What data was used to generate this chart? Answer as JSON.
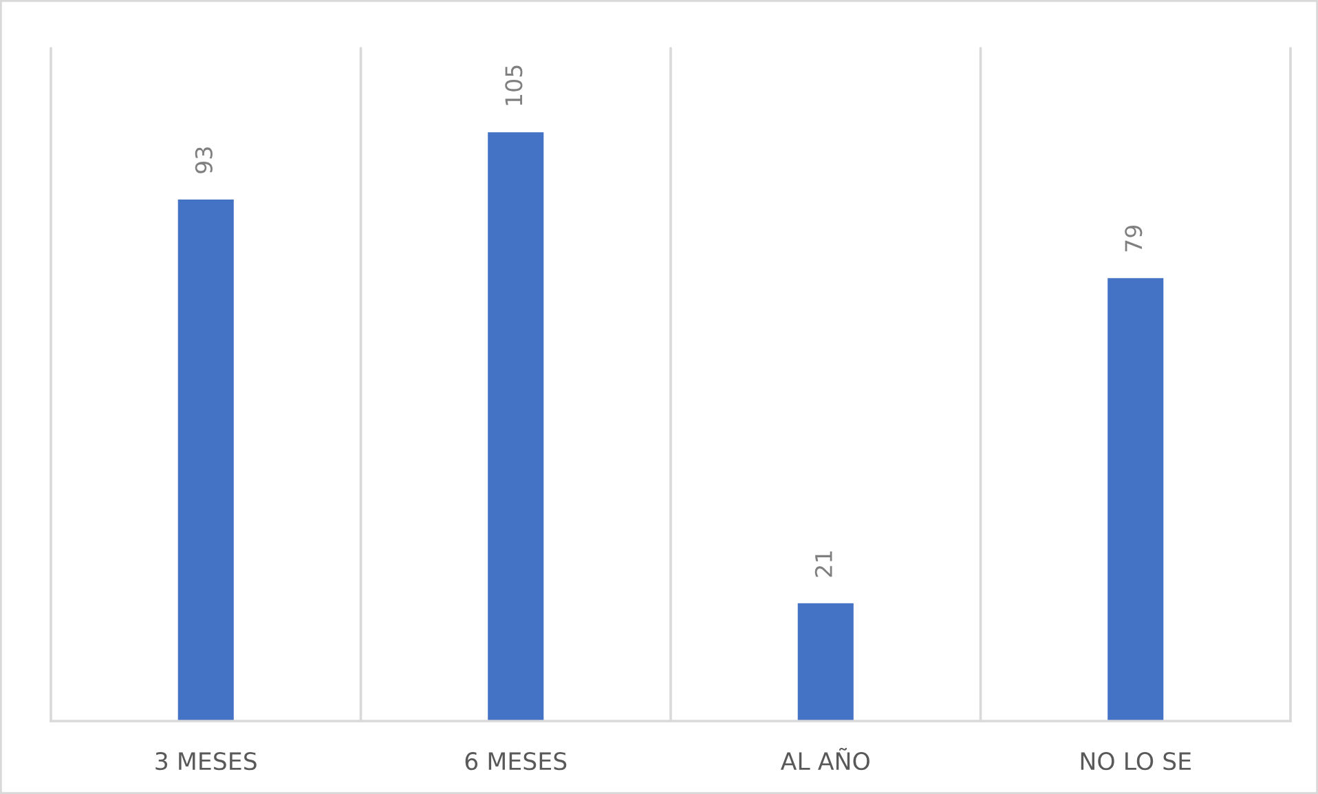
{
  "chart_data": {
    "type": "bar",
    "categories": [
      "3 MESES",
      "6 MESES",
      "AL AÑO",
      "NO LO SE"
    ],
    "values": [
      93,
      105,
      21,
      79
    ],
    "color": "#4472c4",
    "ylim": [
      0,
      120
    ],
    "data_labels": true,
    "grid": "x",
    "tick_labels": "x"
  }
}
